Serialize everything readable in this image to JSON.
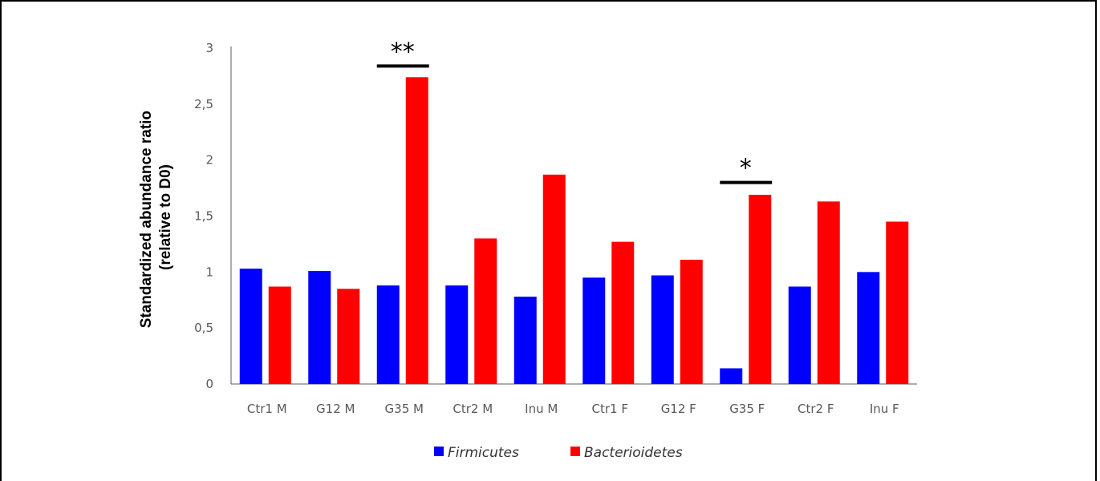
{
  "chart_data": {
    "type": "bar",
    "ylabel": [
      "Standardized abundance ratio",
      "(relative to D0)"
    ],
    "ylim": [
      0,
      3
    ],
    "yticks": [
      0,
      0.5,
      1,
      1.5,
      2,
      2.5,
      3
    ],
    "ytick_labels": [
      "0",
      "0,5",
      "1",
      "1,5",
      "2",
      "2,5",
      "3"
    ],
    "categories": [
      "Ctr1 M",
      "G12 M",
      "G35 M",
      "Ctr2 M",
      "Inu M",
      "Ctr1 F",
      "G12 F",
      "G35 F",
      "Ctr2 F",
      "Inu F"
    ],
    "series": [
      {
        "name": "Firmicutes",
        "color": "#0000ff",
        "values": [
          1.03,
          1.01,
          0.88,
          0.88,
          0.78,
          0.95,
          0.97,
          0.14,
          0.87,
          1.0
        ]
      },
      {
        "name": "Bacterioidetes",
        "color": "#ff0000",
        "values": [
          0.87,
          0.85,
          2.74,
          1.3,
          1.87,
          1.27,
          1.11,
          1.69,
          1.63,
          1.45
        ]
      }
    ],
    "annotations": [
      {
        "text": "**",
        "category": "G35 M",
        "y": 2.84
      },
      {
        "text": "*",
        "category": "G35 F",
        "y": 1.8
      }
    ],
    "grid": false,
    "legend_position": "bottom"
  }
}
